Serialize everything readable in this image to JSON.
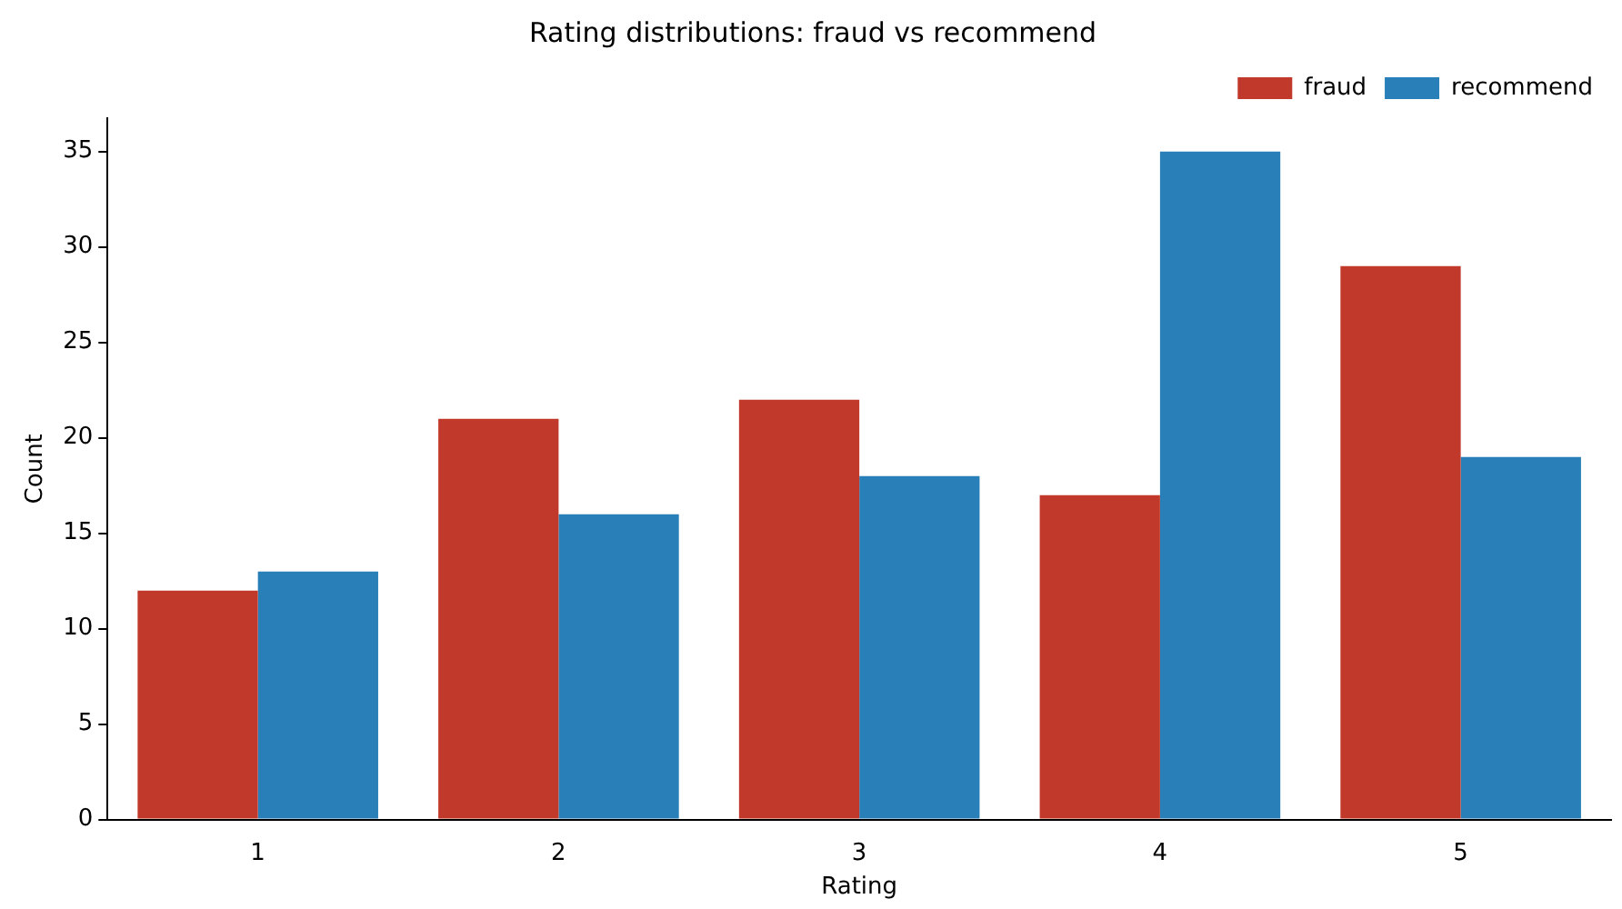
{
  "chart_data": {
    "type": "bar",
    "title": "Rating distributions: fraud vs recommend",
    "xlabel": "Rating",
    "ylabel": "Count",
    "categories": [
      "1",
      "2",
      "3",
      "4",
      "5"
    ],
    "series": [
      {
        "name": "fraud",
        "color": "#c0392b",
        "values": [
          12,
          21,
          22,
          17,
          29
        ]
      },
      {
        "name": "recommend",
        "color": "#2980b9",
        "values": [
          13,
          16,
          18,
          35,
          19
        ]
      }
    ],
    "ylim": [
      0,
      36.75
    ],
    "yticks": [
      0,
      5,
      10,
      15,
      20,
      25,
      30,
      35
    ],
    "grid": false,
    "legend": "top right"
  }
}
